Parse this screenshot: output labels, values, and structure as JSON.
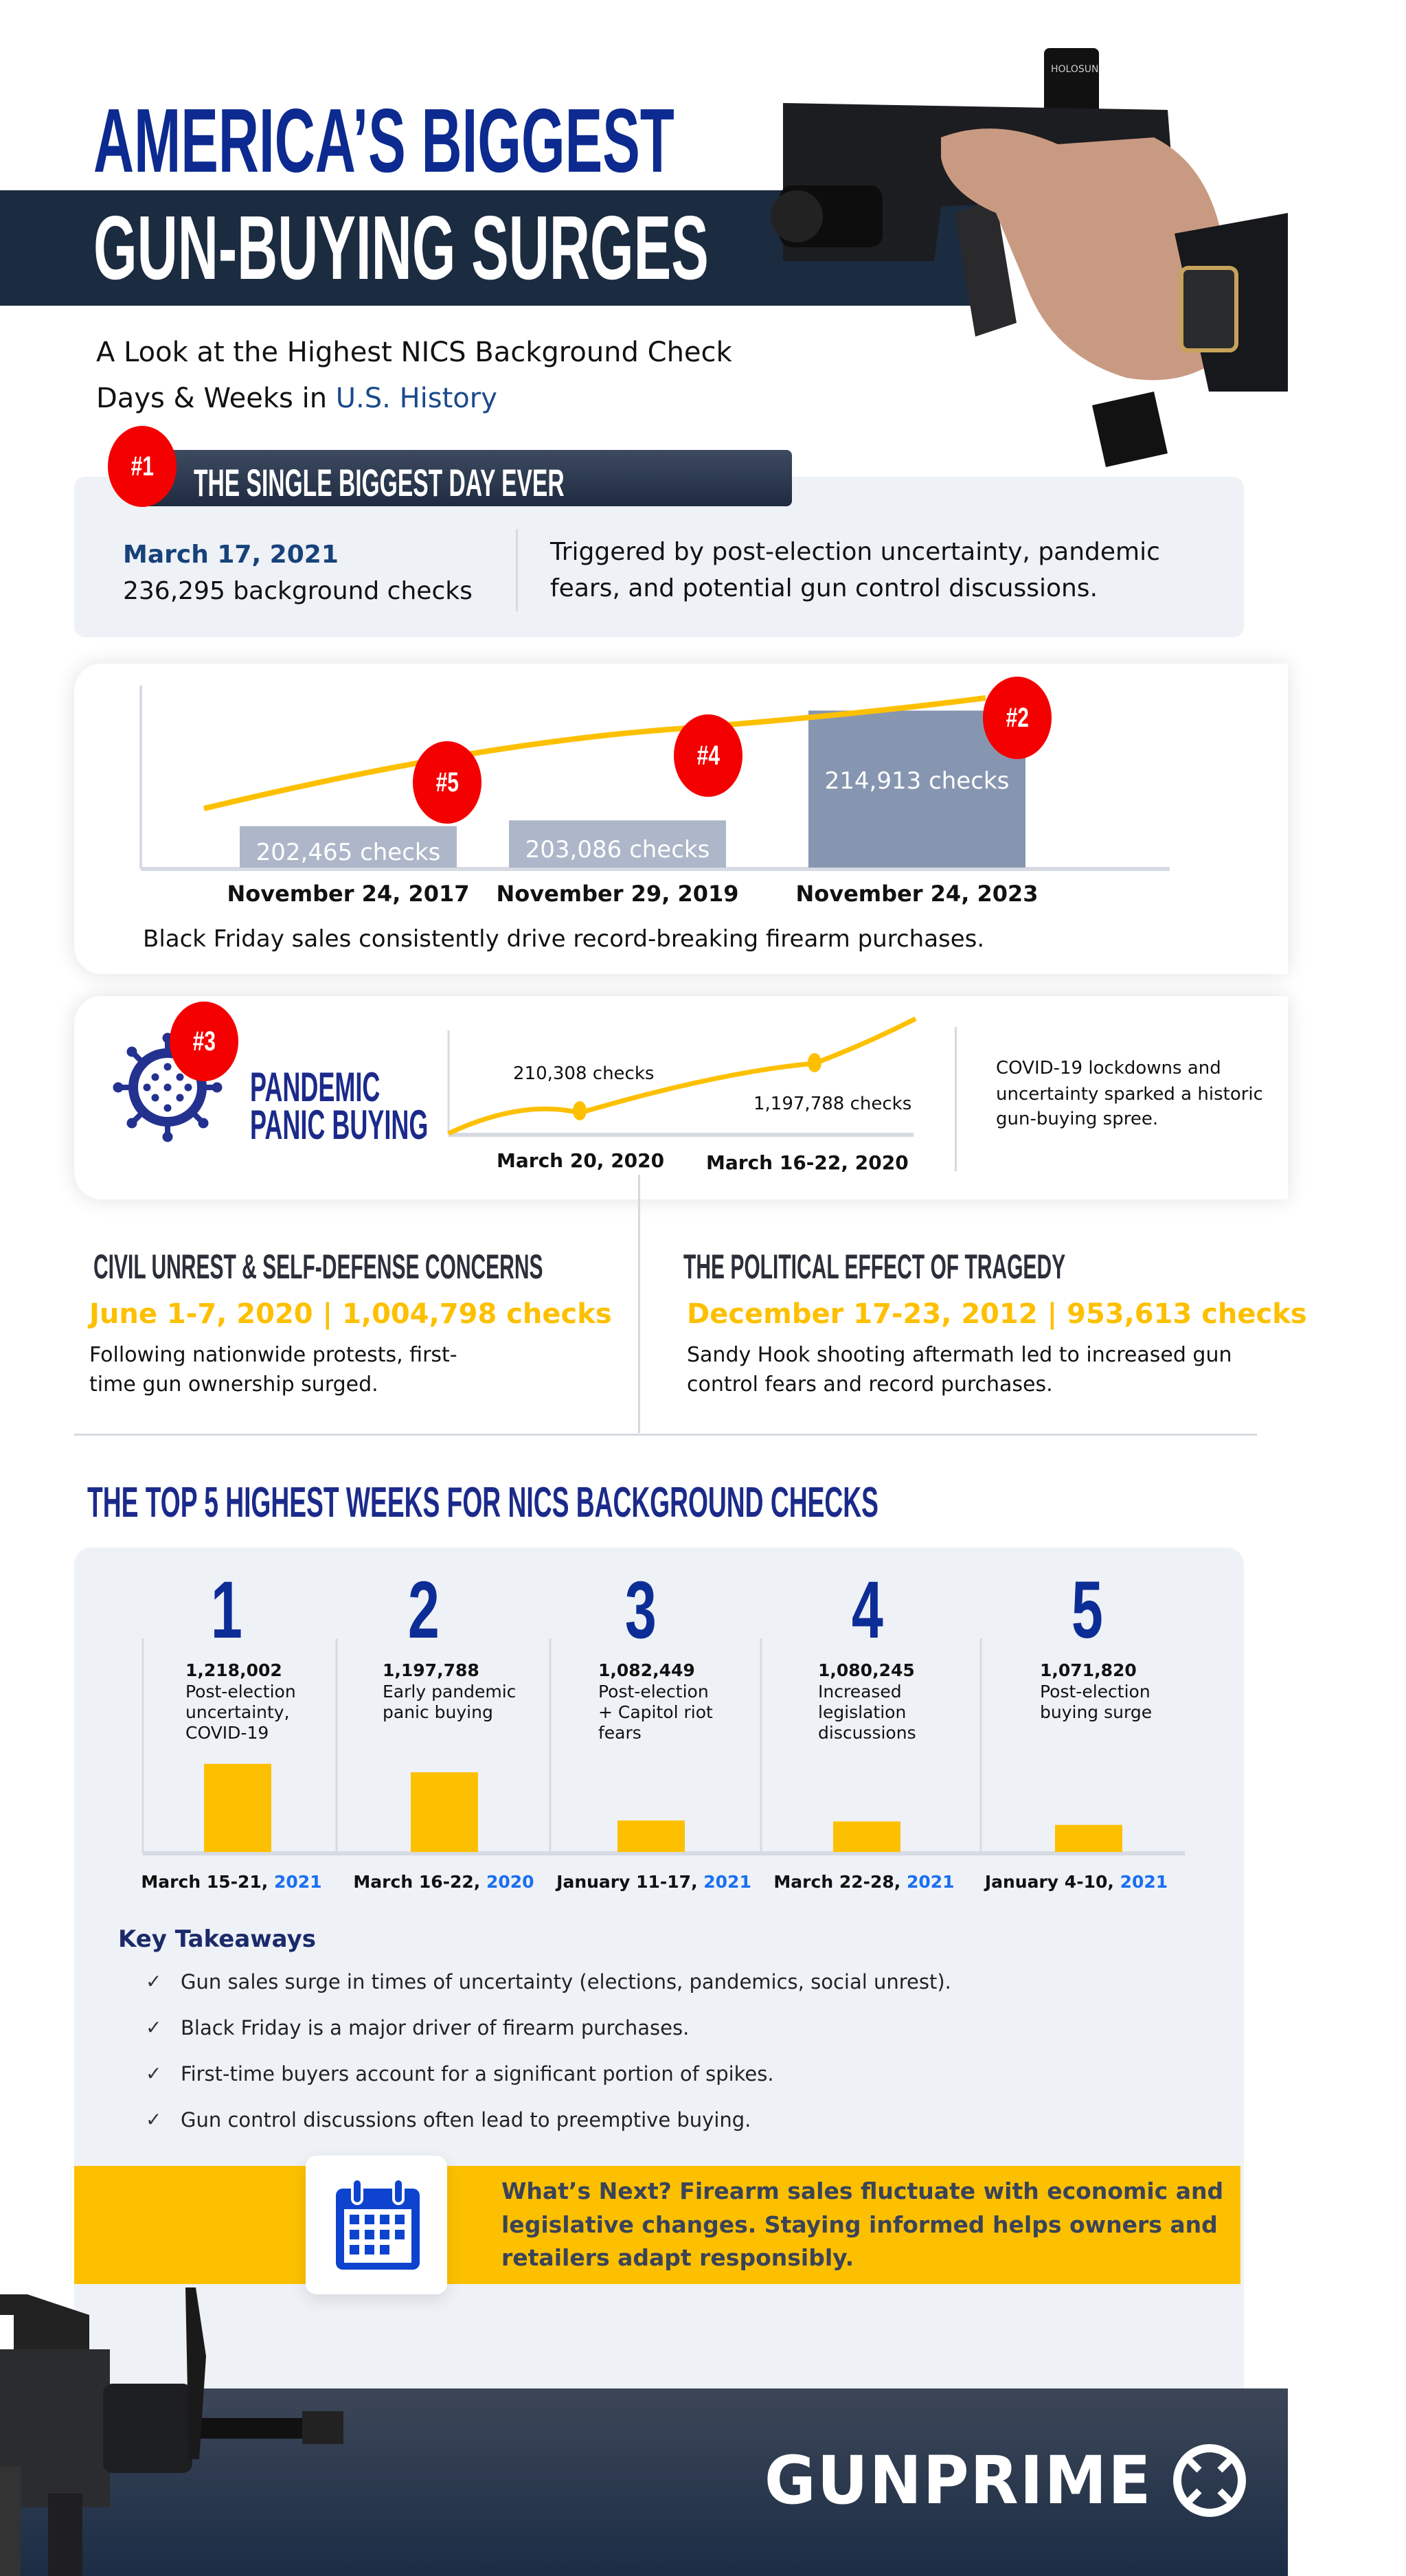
{
  "header": {
    "title_line1": "AMERICA’S BIGGEST",
    "title_line2": "GUN-BUYING SURGES",
    "subtitle_line1": "A Look at the Highest NICS Background Check",
    "subtitle_line2_prefix": "Days & Weeks in ",
    "subtitle_line2_highlight": "U.S. History"
  },
  "biggest_day": {
    "badge": "#1",
    "heading": "THE SINGLE BIGGEST DAY EVER",
    "date": "March 17, 2021",
    "checks": "236,295 background checks",
    "description_line1": "Triggered by post-election uncertainty, pandemic",
    "description_line2": "fears, and potential gun control discussions."
  },
  "black_friday": {
    "chart_data": {
      "type": "bar",
      "categories": [
        "November 24, 2017",
        "November 29, 2019",
        "November 24, 2023"
      ],
      "values": [
        202465,
        203086,
        214913
      ],
      "labels": [
        "202,465  checks",
        "203,086 checks",
        "214,913 checks"
      ],
      "badges": [
        "#5",
        "#4",
        "#2"
      ]
    },
    "caption": "Black Friday sales consistently drive record-breaking firearm purchases."
  },
  "pandemic": {
    "badge": "#3",
    "heading_line1": "PANDEMIC",
    "heading_line2": "PANIC BUYING",
    "chart_data": {
      "type": "line",
      "points": [
        {
          "label": "210,308 checks",
          "date": "March 20, 2020"
        },
        {
          "label": "1,197,788 checks",
          "date": "March 16-22, 2020"
        }
      ]
    },
    "description_line1": "COVID-19 lockdowns and",
    "description_line2": "uncertainty sparked a historic",
    "description_line3": "gun-buying spree."
  },
  "civil_unrest": {
    "heading": "CIVIL UNREST & SELF-DEFENSE CONCERNS",
    "stat": "June 1-7, 2020 | 1,004,798 checks",
    "description_line1": "Following nationwide protests, first-",
    "description_line2": "time gun ownership surged."
  },
  "tragedy": {
    "heading": "THE POLITICAL EFFECT OF TRAGEDY",
    "stat": "December 17-23, 2012 | 953,613 checks",
    "description_line1": "Sandy Hook shooting aftermath led to increased gun",
    "description_line2": "control fears and record purchases."
  },
  "top5": {
    "heading": "THE TOP 5 HIGHEST WEEKS FOR NICS BACKGROUND CHECKS",
    "chart_data": {
      "type": "bar",
      "weeks": [
        {
          "rank": "1",
          "value": 1218002,
          "value_label": "1,218,002",
          "desc": [
            "Post-election",
            "uncertainty,",
            "COVID-19"
          ],
          "date": "March 15-21, ",
          "year": "2021"
        },
        {
          "rank": "2",
          "value": 1197788,
          "value_label": "1,197,788",
          "desc": [
            "Early pandemic",
            "panic buying"
          ],
          "date": "March 16-22, ",
          "year": "2020"
        },
        {
          "rank": "3",
          "value": 1082449,
          "value_label": "1,082,449",
          "desc": [
            "Post-election",
            "+ Capitol riot",
            "fears"
          ],
          "date": "January 11-17, ",
          "year": "2021"
        },
        {
          "rank": "4",
          "value": 1080245,
          "value_label": "1,080,245",
          "desc": [
            "Increased",
            "legislation",
            "discussions"
          ],
          "date": "March 22-28, ",
          "year": "2021"
        },
        {
          "rank": "5",
          "value": 1071820,
          "value_label": "1,071,820",
          "desc": [
            "Post-election",
            "buying surge"
          ],
          "date": "January 4-10, ",
          "year": "2021"
        }
      ]
    }
  },
  "takeaways": {
    "heading": "Key Takeaways",
    "items": [
      "Gun sales surge in times of uncertainty (elections, pandemics, social unrest).",
      "Black Friday is a major driver of firearm purchases.",
      "First-time buyers account for a significant portion of spikes.",
      "Gun control discussions often lead to preemptive buying."
    ]
  },
  "whats_next": {
    "icon": "calendar-icon",
    "line1": "What’s Next? Firearm sales fluctuate with economic and",
    "line2": "legislative changes. Staying informed helps owners and",
    "line3": "retailers adapt responsibly."
  },
  "footer": {
    "logo": "GUNPRIME"
  },
  "colors": {
    "navy": "#1b2a8a",
    "dark_band": "#1b2b40",
    "red": "#f40000",
    "yellow": "#fdc000",
    "blue_year": "#1a6ff0",
    "card_gray": "#eef1f6"
  }
}
